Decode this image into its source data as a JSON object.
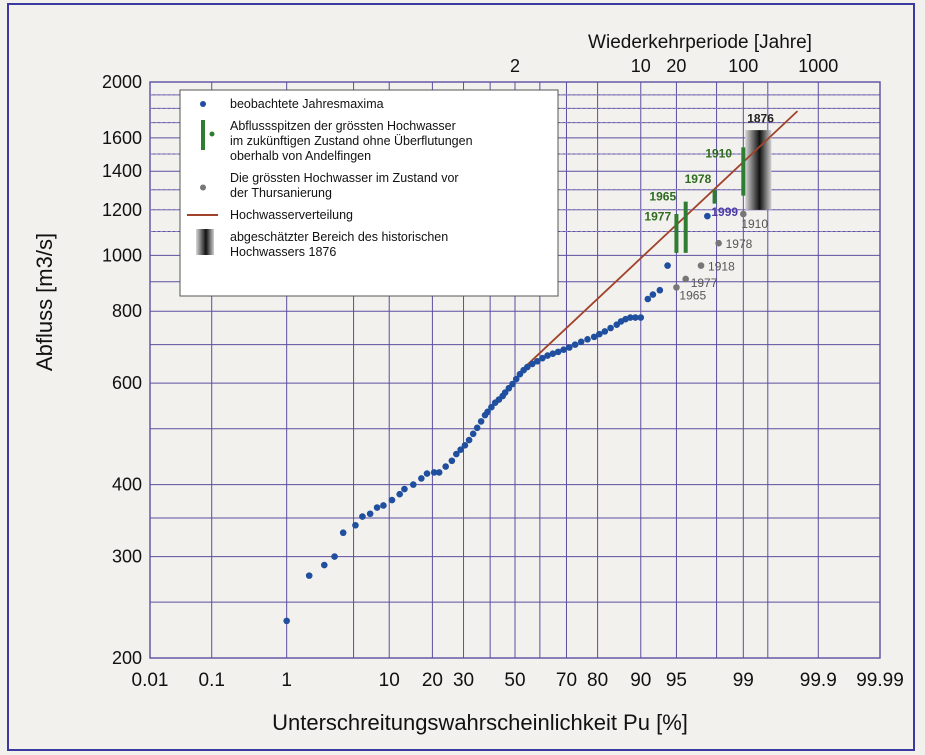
{
  "chart_data": {
    "type": "scatter",
    "title": "",
    "xlabel": "Unterschreitungswahrscheinlichkeit Pu [%]",
    "ylabel": "Abfluss [m3/s]",
    "x2label": "Wiederkehrperiode [Jahre]",
    "xscale": "normal-probability",
    "yscale": "log",
    "ylim": [
      200,
      2000
    ],
    "xlim": [
      0.01,
      99.99
    ],
    "grid": true,
    "legend_position": "top-left",
    "x_ticks": [
      {
        "v": 0.01,
        "label": "0.01"
      },
      {
        "v": 0.1,
        "label": "0.1"
      },
      {
        "v": 1,
        "label": "1"
      },
      {
        "v": 10,
        "label": "10"
      },
      {
        "v": 20,
        "label": "20"
      },
      {
        "v": 30,
        "label": "30"
      },
      {
        "v": 50,
        "label": "50"
      },
      {
        "v": 70,
        "label": "70"
      },
      {
        "v": 80,
        "label": "80"
      },
      {
        "v": 90,
        "label": "90"
      },
      {
        "v": 95,
        "label": "95"
      },
      {
        "v": 99,
        "label": "99"
      },
      {
        "v": 99.9,
        "label": "99.9"
      },
      {
        "v": 99.99,
        "label": "99.99"
      }
    ],
    "top_ticks": [
      {
        "v": 50,
        "label": "2"
      },
      {
        "v": 90,
        "label": "10"
      },
      {
        "v": 95,
        "label": "20"
      },
      {
        "v": 99,
        "label": "100"
      },
      {
        "v": 99.9,
        "label": "1000"
      }
    ],
    "y_ticks": [
      200,
      300,
      400,
      600,
      800,
      1000,
      1200,
      1400,
      1600,
      2000
    ],
    "y_tick_labels": [
      "200",
      "300",
      "400",
      "600",
      "800",
      "1000",
      "1200",
      "1400",
      "1600",
      "2000"
    ],
    "x_grid": [
      0.01,
      0.1,
      1,
      5,
      10,
      20,
      30,
      40,
      50,
      60,
      70,
      80,
      90,
      95,
      98,
      99,
      99.5,
      99.9,
      99.99
    ],
    "y_grid": [
      200,
      250,
      300,
      350,
      400,
      500,
      600,
      700,
      800,
      900,
      1000,
      1100,
      1200,
      1300,
      1400,
      1500,
      1600,
      1700,
      1800,
      1900,
      2000
    ],
    "colors": {
      "grid": "#5a4fa0",
      "observed": "#1f4f9e",
      "future": "#2e7d32",
      "historic": "#777777",
      "distribution": "#a0432a",
      "frame": "#3a3aa0"
    },
    "series": [
      {
        "name": "beobachtete Jahresmaxima",
        "points": [
          [
            1,
            232
          ],
          [
            1.8,
            278
          ],
          [
            2.6,
            290
          ],
          [
            3.3,
            300
          ],
          [
            4.0,
            330
          ],
          [
            5.2,
            340
          ],
          [
            6.0,
            352
          ],
          [
            7.0,
            356
          ],
          [
            8.0,
            365
          ],
          [
            9.0,
            368
          ],
          [
            10.5,
            376
          ],
          [
            12,
            385
          ],
          [
            13,
            393
          ],
          [
            15,
            400
          ],
          [
            17,
            410
          ],
          [
            18.5,
            418
          ],
          [
            20.5,
            420
          ],
          [
            22,
            420
          ],
          [
            24,
            430
          ],
          [
            26,
            440
          ],
          [
            27.5,
            452
          ],
          [
            29,
            460
          ],
          [
            30.5,
            468
          ],
          [
            32,
            478
          ],
          [
            33.5,
            490
          ],
          [
            35,
            502
          ],
          [
            36.5,
            515
          ],
          [
            38,
            528
          ],
          [
            39,
            535
          ],
          [
            40.5,
            545
          ],
          [
            42,
            555
          ],
          [
            43.5,
            562
          ],
          [
            45,
            570
          ],
          [
            46,
            578
          ],
          [
            47.5,
            588
          ],
          [
            49,
            598
          ],
          [
            50.5,
            610
          ],
          [
            52,
            622
          ],
          [
            53.5,
            632
          ],
          [
            55,
            640
          ],
          [
            57,
            648
          ],
          [
            59,
            655
          ],
          [
            61,
            663
          ],
          [
            63,
            670
          ],
          [
            65,
            675
          ],
          [
            67,
            680
          ],
          [
            69,
            686
          ],
          [
            71,
            692
          ],
          [
            73,
            700
          ],
          [
            75,
            708
          ],
          [
            77,
            715
          ],
          [
            79,
            722
          ],
          [
            80.5,
            730
          ],
          [
            82,
            738
          ],
          [
            83.5,
            748
          ],
          [
            85,
            758
          ],
          [
            86,
            768
          ],
          [
            87,
            775
          ],
          [
            88,
            780
          ],
          [
            89,
            780
          ],
          [
            90,
            780
          ],
          [
            91.2,
            840
          ],
          [
            92,
            855
          ],
          [
            93,
            870
          ],
          [
            94,
            960
          ],
          [
            97.5,
            1170
          ]
        ]
      },
      {
        "name": "Abflussspitzen der grössten Hochwasser im zukünftigen Zustand ohne Überflutungen oberhalb von Andelfingen",
        "bars": [
          {
            "x": 95.0,
            "lo": 1010,
            "hi": 1180
          },
          {
            "x": 95.9,
            "lo": 1010,
            "hi": 1240
          },
          {
            "x": 97.9,
            "lo": 1230,
            "hi": 1300
          },
          {
            "x": 99.0,
            "lo": 1270,
            "hi": 1540
          }
        ]
      },
      {
        "name": "Die grössten Hochwasser im Zustand vor der Thursanierung",
        "points": [
          [
            95.0,
            880
          ],
          [
            95.9,
            910
          ],
          [
            97.1,
            960
          ],
          [
            98.1,
            1050
          ],
          [
            99.0,
            1180
          ]
        ]
      },
      {
        "name": "Hochwasserverteilung",
        "line": [
          [
            54,
            640
          ],
          [
            99.8,
            1780
          ]
        ]
      },
      {
        "name": "abgeschätzter Bereich des historischen Hochwassers 1876",
        "range": {
          "x": [
            99.05,
            99.55
          ],
          "lo": 1200,
          "hi": 1650
        }
      }
    ],
    "point_labels": [
      {
        "text": "1965",
        "x": 95.0,
        "y": 880,
        "dx": 3,
        "dy": 12,
        "color": "#555555",
        "weight": "normal"
      },
      {
        "text": "1977",
        "x": 95.9,
        "y": 910,
        "dx": 5,
        "dy": 8,
        "color": "#555555",
        "weight": "normal"
      },
      {
        "text": "1918",
        "x": 97.1,
        "y": 960,
        "dx": 7,
        "dy": 5,
        "color": "#555555",
        "weight": "normal"
      },
      {
        "text": "1978",
        "x": 98.1,
        "y": 1050,
        "dx": 7,
        "dy": 5,
        "color": "#555555",
        "weight": "normal"
      },
      {
        "text": "1910",
        "x": 99.0,
        "y": 1180,
        "dx": -2,
        "dy": 14,
        "color": "#555555",
        "weight": "normal"
      },
      {
        "text": "1999",
        "x": 97.5,
        "y": 1170,
        "dx": 4,
        "dy": 0,
        "color": "#4b3aa8",
        "weight": "bold"
      },
      {
        "text": "1965",
        "x": 95.0,
        "y": 1245,
        "dx": -27,
        "dy": 0,
        "color": "#2e6b1f",
        "weight": "bold"
      },
      {
        "text": "1977",
        "x": 95.0,
        "y": 1150,
        "dx": -32,
        "dy": 0,
        "color": "#2e6b1f",
        "weight": "bold"
      },
      {
        "text": "1978",
        "x": 97.9,
        "y": 1335,
        "dx": -30,
        "dy": 0,
        "color": "#2e6b1f",
        "weight": "bold"
      },
      {
        "text": "1910",
        "x": 99.0,
        "y": 1480,
        "dx": -38,
        "dy": 0,
        "color": "#2e6b1f",
        "weight": "bold"
      },
      {
        "text": "1876",
        "x": 99.05,
        "y": 1700,
        "dx": 2,
        "dy": 0,
        "color": "#222222",
        "weight": "bold"
      }
    ],
    "legend": [
      {
        "symbol": "dot-blue",
        "lines": [
          "beobachtete Jahresmaxima"
        ]
      },
      {
        "symbol": "bar-green",
        "lines": [
          "Abflussspitzen der grössten Hochwasser",
          "im zukünftigen Zustand ohne Überflutungen",
          "oberhalb von Andelfingen"
        ]
      },
      {
        "symbol": "dot-grey",
        "lines": [
          "Die grössten Hochwasser im Zustand vor",
          "der Thursanierung"
        ]
      },
      {
        "symbol": "line-brown",
        "lines": [
          "Hochwasserverteilung"
        ]
      },
      {
        "symbol": "gradient-box",
        "lines": [
          "abgeschätzter Bereich des historischen",
          "Hochwassers 1876"
        ]
      }
    ]
  }
}
